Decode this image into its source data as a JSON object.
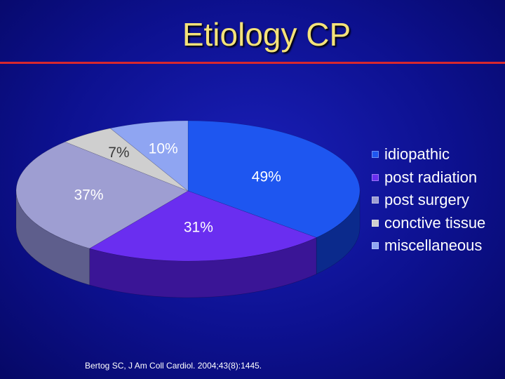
{
  "slide": {
    "title": "Etiology CP",
    "citation": "Bertog SC, J Am Coll Cardiol. 2004;43(8):1445."
  },
  "chart_data": {
    "type": "pie",
    "title": "",
    "legend_position": "right",
    "categories": [
      "idiopathic",
      "post radiation",
      "post surgery",
      "conctive tissue",
      "miscellaneous"
    ],
    "slices": [
      {
        "label": "idiopathic",
        "value": 49,
        "display": "49%",
        "color": "#1e56f0",
        "side": "#0b2a8c"
      },
      {
        "label": "post radiation",
        "value": 31,
        "display": "31%",
        "color": "#6a2ef0",
        "side": "#3a1596"
      },
      {
        "label": "post surgery",
        "value": 37,
        "display": "37%",
        "color": "#9e9ed2",
        "side": "#5e5e8c"
      },
      {
        "label": "conctive tissue",
        "value": 7,
        "display": "7%",
        "color": "#cfcfcf",
        "side": "#8a8a8a"
      },
      {
        "label": "miscellaneous",
        "value": 10,
        "display": "10%",
        "color": "#8fa5f2",
        "side": "#5a6fb8"
      }
    ]
  }
}
